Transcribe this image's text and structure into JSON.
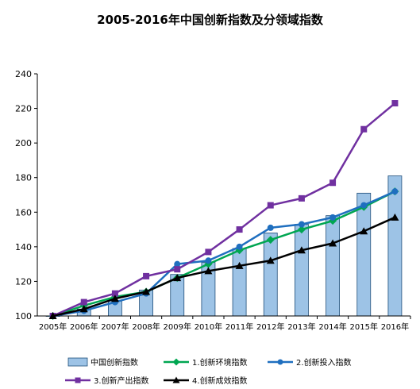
{
  "chart_data": {
    "type": "bar",
    "title": "2005-2016年中国创新指数及分领域指数",
    "xlabel": "",
    "ylabel": "",
    "categories": [
      "2005年",
      "2006年",
      "2007年",
      "2008年",
      "2009年",
      "2010年",
      "2011年",
      "2012年",
      "2013年",
      "2014年",
      "2015年",
      "2016年"
    ],
    "yticks": [
      "100",
      "120",
      "140",
      "160",
      "180",
      "200",
      "220",
      "240"
    ],
    "ylim": [
      100,
      240
    ],
    "grid": false,
    "legend_position": "bottom",
    "bar_series": {
      "name": "中国创新指数",
      "color": "#9dc3e6",
      "values": [
        100,
        104,
        109,
        115,
        124,
        131,
        139,
        148,
        153,
        158,
        171,
        181
      ]
    },
    "series": [
      {
        "name": "1.创新环境指数",
        "color": "#00a651",
        "marker": "diamond",
        "values": [
          100,
          106,
          111,
          114,
          122,
          130,
          138,
          144,
          150,
          155,
          163,
          172
        ]
      },
      {
        "name": "2.创新投入指数",
        "color": "#1f6fbf",
        "marker": "circle",
        "values": [
          100,
          103,
          108,
          113,
          130,
          132,
          140,
          151,
          153,
          157,
          164,
          172
        ]
      },
      {
        "name": "3.创新产出指数",
        "color": "#7030a0",
        "marker": "square",
        "values": [
          100,
          108,
          113,
          123,
          127,
          137,
          150,
          164,
          168,
          177,
          208,
          223
        ]
      },
      {
        "name": "4.创新成效指数",
        "color": "#000000",
        "marker": "triangle",
        "values": [
          100,
          104,
          110,
          114,
          122,
          126,
          129,
          132,
          138,
          142,
          149,
          157
        ]
      }
    ]
  }
}
